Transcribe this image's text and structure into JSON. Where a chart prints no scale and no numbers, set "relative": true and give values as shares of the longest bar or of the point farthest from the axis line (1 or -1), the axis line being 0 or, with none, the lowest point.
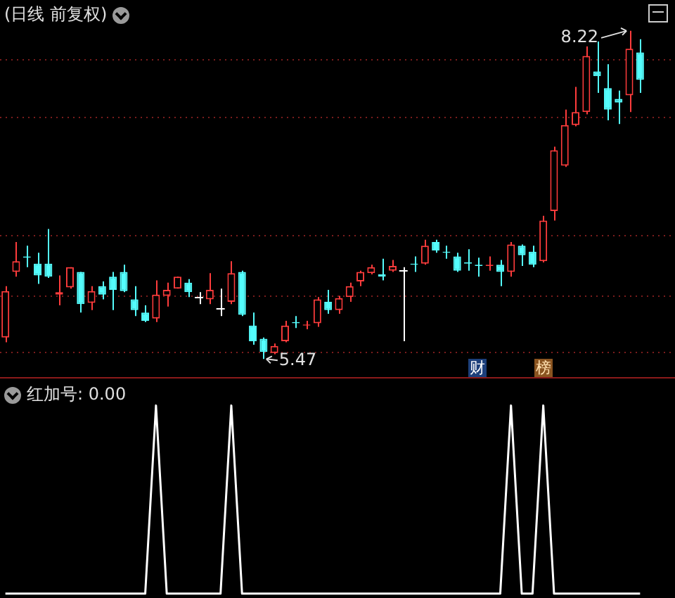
{
  "chart_data": [
    {
      "type": "candlestick",
      "title": "(日线 前复权)",
      "categories": [
        null,
        null,
        null,
        null,
        null,
        null,
        null,
        null,
        null,
        null,
        null,
        null,
        null,
        null,
        null,
        null,
        null,
        null,
        null,
        null,
        null,
        null,
        null,
        null,
        null,
        null,
        null,
        null,
        null,
        null,
        null,
        null,
        null,
        null,
        null,
        null,
        null,
        null,
        null,
        null,
        null,
        null,
        null,
        null,
        null,
        null,
        null,
        null,
        null,
        null,
        null,
        null,
        null,
        null,
        null,
        null,
        null,
        null,
        null,
        null
      ],
      "ohlc": [
        [
          5.65,
          6.08,
          5.61,
          6.04
        ],
        [
          6.2,
          6.45,
          6.16,
          6.29
        ],
        [
          6.33,
          6.42,
          6.24,
          6.32
        ],
        [
          6.27,
          6.36,
          6.1,
          6.17
        ],
        [
          6.27,
          6.56,
          6.15,
          6.16
        ],
        [
          6.01,
          6.17,
          5.92,
          6.03
        ],
        [
          6.07,
          6.24,
          6.06,
          6.24
        ],
        [
          6.2,
          6.2,
          5.86,
          5.93
        ],
        [
          5.94,
          6.08,
          5.88,
          6.04
        ],
        [
          6.08,
          6.12,
          5.97,
          6.01
        ],
        [
          6.16,
          6.2,
          5.88,
          6.05
        ],
        [
          6.2,
          6.26,
          6.03,
          6.04
        ],
        [
          5.97,
          6.08,
          5.83,
          5.88
        ],
        [
          5.86,
          5.92,
          5.78,
          5.79
        ],
        [
          5.81,
          6.13,
          5.78,
          6.01
        ],
        [
          6.0,
          6.11,
          5.91,
          6.05
        ],
        [
          6.06,
          6.16,
          6.06,
          6.16
        ],
        [
          6.11,
          6.14,
          5.99,
          6.03
        ],
        [
          5.99,
          6.03,
          5.93,
          5.99
        ],
        [
          5.97,
          6.19,
          5.93,
          6.05
        ],
        [
          5.9,
          6.06,
          5.83,
          5.9
        ],
        [
          5.95,
          6.29,
          5.93,
          6.19
        ],
        [
          6.2,
          6.21,
          5.83,
          5.84
        ],
        [
          5.75,
          5.86,
          5.59,
          5.62
        ],
        [
          5.64,
          5.65,
          5.47,
          5.53
        ],
        [
          5.52,
          5.6,
          5.51,
          5.58
        ],
        [
          5.62,
          5.79,
          5.61,
          5.75
        ],
        [
          5.78,
          5.83,
          5.73,
          5.77
        ],
        [
          5.75,
          5.79,
          5.72,
          5.76
        ],
        [
          5.77,
          5.99,
          5.74,
          5.97
        ],
        [
          5.95,
          6.05,
          5.85,
          5.88
        ],
        [
          5.88,
          6.0,
          5.85,
          5.98
        ],
        [
          5.99,
          6.11,
          5.95,
          6.08
        ],
        [
          6.12,
          6.21,
          6.08,
          6.2
        ],
        [
          6.19,
          6.26,
          6.18,
          6.24
        ],
        [
          6.18,
          6.31,
          6.13,
          6.16
        ],
        [
          6.21,
          6.3,
          6.2,
          6.25
        ],
        [
          6.21,
          6.24,
          5.62,
          6.21
        ],
        [
          6.27,
          6.33,
          6.2,
          6.26
        ],
        [
          6.27,
          6.47,
          6.26,
          6.42
        ],
        [
          6.45,
          6.47,
          6.36,
          6.38
        ],
        [
          6.37,
          6.42,
          6.31,
          6.36
        ],
        [
          6.33,
          6.36,
          6.2,
          6.21
        ],
        [
          6.28,
          6.39,
          6.21,
          6.27
        ],
        [
          6.26,
          6.32,
          6.16,
          6.25
        ],
        [
          6.25,
          6.33,
          6.21,
          6.26
        ],
        [
          6.26,
          6.3,
          6.08,
          6.2
        ],
        [
          6.2,
          6.45,
          6.16,
          6.43
        ],
        [
          6.42,
          6.43,
          6.25,
          6.34
        ],
        [
          6.37,
          6.42,
          6.24,
          6.26
        ],
        [
          6.29,
          6.67,
          6.28,
          6.63
        ],
        [
          6.71,
          7.25,
          6.63,
          7.22
        ],
        [
          7.09,
          7.56,
          7.08,
          7.43
        ],
        [
          7.43,
          7.75,
          7.42,
          7.54
        ],
        [
          7.54,
          8.09,
          7.52,
          8.01
        ],
        [
          7.88,
          8.13,
          7.7,
          7.84
        ],
        [
          7.74,
          7.94,
          7.47,
          7.56
        ],
        [
          7.65,
          7.72,
          7.44,
          7.62
        ],
        [
          7.68,
          8.22,
          7.54,
          8.07
        ],
        [
          8.04,
          8.15,
          7.7,
          7.81
        ]
      ],
      "colors": [
        "#ff3c3c",
        "#ff3c3c",
        "#54fcfc",
        "#54fcfc",
        "#54fcfc",
        "#ff3c3c",
        "#ff3c3c",
        "#54fcfc",
        "#ff3c3c",
        "#54fcfc",
        "#54fcfc",
        "#54fcfc",
        "#54fcfc",
        "#54fcfc",
        "#ff3c3c",
        "#ff3c3c",
        "#ff3c3c",
        "#54fcfc",
        "#ffffff",
        "#ff3c3c",
        "#ffffff",
        "#ff3c3c",
        "#54fcfc",
        "#54fcfc",
        "#54fcfc",
        "#ff3c3c",
        "#ff3c3c",
        "#54fcfc",
        "#ff3c3c",
        "#ff3c3c",
        "#54fcfc",
        "#ff3c3c",
        "#ff3c3c",
        "#ff3c3c",
        "#ff3c3c",
        "#54fcfc",
        "#ff3c3c",
        "#ffffff",
        "#54fcfc",
        "#ff3c3c",
        "#54fcfc",
        "#54fcfc",
        "#54fcfc",
        "#54fcfc",
        "#54fcfc",
        "#ff3c3c",
        "#54fcfc",
        "#ff3c3c",
        "#54fcfc",
        "#54fcfc",
        "#ff3c3c",
        "#ff3c3c",
        "#ff3c3c",
        "#ff3c3c",
        "#ff3c3c",
        "#54fcfc",
        "#54fcfc",
        "#54fcfc",
        "#ff3c3c",
        "#54fcfc"
      ],
      "yticks": [
        {
          "value": 7.98,
          "label": null
        },
        {
          "value": 7.5,
          "label": null
        },
        {
          "value": 6.51,
          "label": null
        },
        {
          "value": 6.0,
          "label": null
        },
        {
          "value": 5.53,
          "label": null
        }
      ],
      "grid": "y",
      "annotations": [
        "8.22",
        "5.47",
        "财",
        "榜"
      ]
    },
    {
      "type": "line",
      "title": "红加号: 0.00",
      "categories": [
        null,
        null,
        null,
        null,
        null,
        null,
        null,
        null,
        null,
        null,
        null,
        null,
        null,
        null,
        null,
        null,
        null,
        null,
        null,
        null,
        null,
        null,
        null,
        null,
        null,
        null,
        null,
        null,
        null,
        null,
        null,
        null,
        null,
        null,
        null,
        null,
        null,
        null,
        null,
        null,
        null,
        null,
        null,
        null,
        null,
        null,
        null,
        null,
        null,
        null,
        null,
        null,
        null,
        null,
        null,
        null,
        null,
        null,
        null,
        null
      ],
      "values": [
        0,
        0,
        0,
        0,
        0,
        0,
        0,
        0,
        0,
        0,
        0,
        0,
        0,
        0,
        1,
        0,
        0,
        0,
        0,
        0,
        0,
        1,
        0,
        0,
        0,
        0,
        0,
        0,
        0,
        0,
        0,
        0,
        0,
        0,
        0,
        0,
        0,
        0,
        0,
        0,
        0,
        0,
        0,
        0,
        0,
        0,
        0,
        1,
        0,
        0,
        1,
        0,
        0,
        0,
        0,
        0,
        0,
        0,
        0,
        0
      ],
      "color": "#ffffff",
      "relative": true
    }
  ]
}
